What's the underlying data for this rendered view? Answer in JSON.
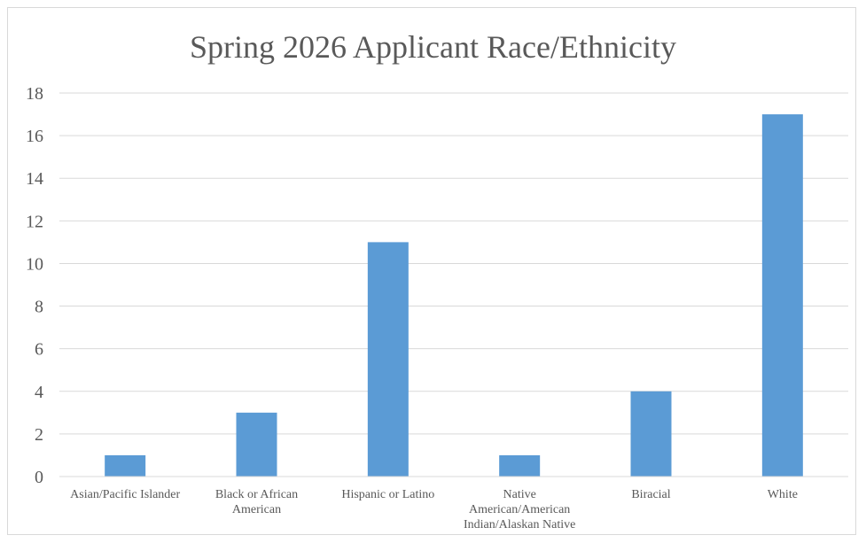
{
  "chart_data": {
    "type": "bar",
    "title": "Spring 2026 Applicant Race/Ethnicity",
    "xlabel": "",
    "ylabel": "",
    "categories": [
      "Asian/Pacific Islander",
      "Black or African American",
      "Hispanic or Latino",
      "Native American/American Indian/Alaskan Native",
      "Biracial",
      "White"
    ],
    "category_label_lines": [
      [
        "Asian/Pacific Islander"
      ],
      [
        "Black or African",
        "American"
      ],
      [
        "Hispanic or Latino"
      ],
      [
        "Native",
        "American/American",
        "Indian/Alaskan Native"
      ],
      [
        "Biracial"
      ],
      [
        "White"
      ]
    ],
    "values": [
      1,
      3,
      11,
      1,
      4,
      17
    ],
    "ylim": [
      0,
      18
    ],
    "yticks": [
      0,
      2,
      4,
      6,
      8,
      10,
      12,
      14,
      16,
      18
    ],
    "grid": true,
    "legend": "none",
    "bar_color": "#5B9BD5",
    "gridline_color": "#d9d9d9",
    "axis_color": "#d9d9d9",
    "text_color": "#595959"
  }
}
